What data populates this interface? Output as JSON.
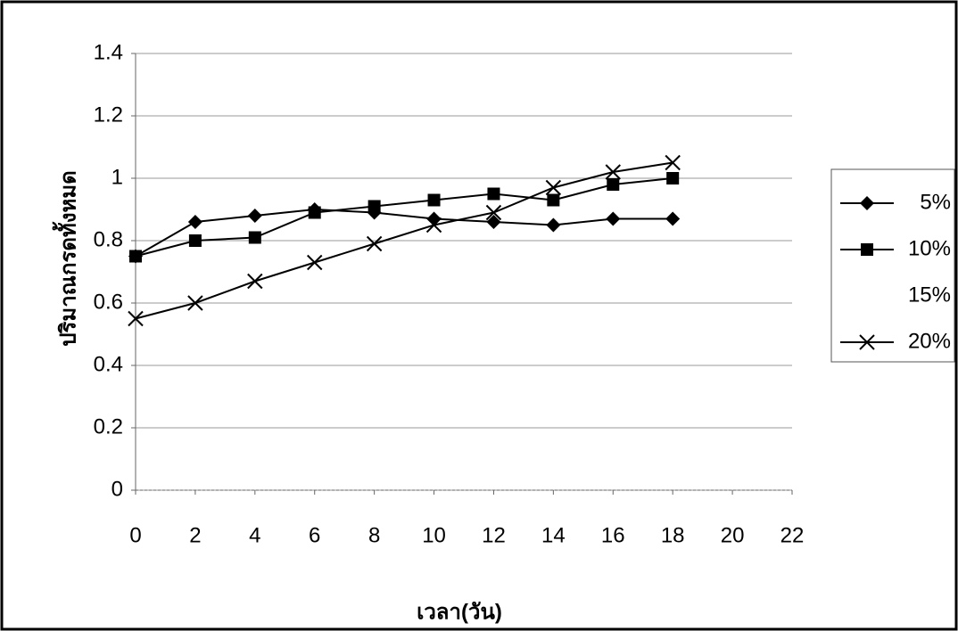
{
  "chart_data": {
    "type": "line",
    "x_label": "เวลา(วัน)",
    "y_label": "ปริมาณกรดทั้งหมด",
    "x": [
      0,
      2,
      4,
      6,
      8,
      10,
      12,
      14,
      16,
      18
    ],
    "series": [
      {
        "name": "5%",
        "color": "#000000",
        "marker": "diamond",
        "values": [
          0.75,
          0.86,
          0.88,
          0.9,
          0.89,
          0.87,
          0.86,
          0.85,
          0.87,
          0.87
        ]
      },
      {
        "name": "10%",
        "color": "#000000",
        "marker": "square",
        "values": [
          0.75,
          0.8,
          0.81,
          0.89,
          0.91,
          0.93,
          0.95,
          0.93,
          0.98,
          1.0
        ]
      },
      {
        "name": "15%",
        "color": "#ffffff",
        "marker": "none",
        "values": [
          null,
          null,
          null,
          null,
          null,
          null,
          null,
          null,
          null,
          null
        ]
      },
      {
        "name": "20%",
        "color": "#000000",
        "marker": "x",
        "values": [
          0.55,
          0.6,
          0.67,
          0.73,
          0.79,
          0.85,
          0.89,
          0.97,
          1.02,
          1.05
        ]
      }
    ],
    "xlim": [
      0,
      22
    ],
    "xticks": [
      0,
      2,
      4,
      6,
      8,
      10,
      12,
      14,
      16,
      18,
      20,
      22
    ],
    "ylim": [
      0,
      1.4
    ],
    "yticks": [
      0,
      0.2,
      0.4,
      0.6,
      0.8,
      1,
      1.2,
      1.4
    ],
    "grid": true,
    "legend": "right"
  }
}
